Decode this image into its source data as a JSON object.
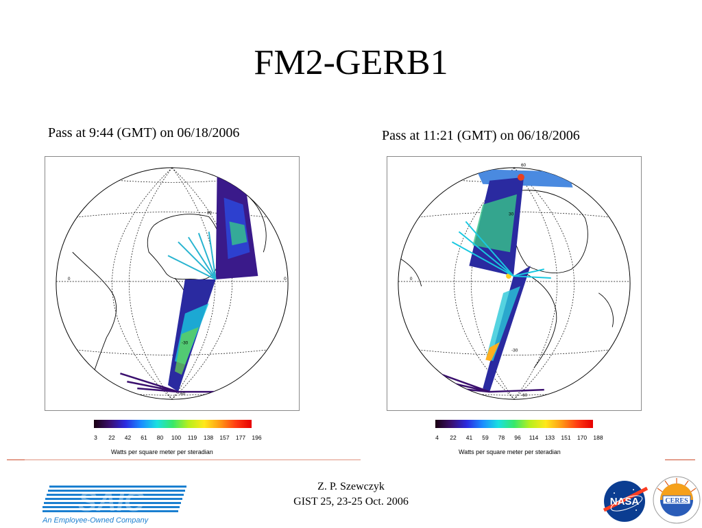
{
  "slide": {
    "title": "FM2-GERB1",
    "colors": {
      "rule": "#cc4a2a",
      "saic_blue": "#1a7fd0",
      "nasa_blue": "#0b3d91",
      "nasa_red": "#fc3d21"
    }
  },
  "panels": [
    {
      "caption": "Pass at 9:44 (GMT) on 06/18/2006",
      "colorbar_ticks": [
        "3",
        "22",
        "42",
        "61",
        "80",
        "100",
        "119",
        "138",
        "157",
        "177",
        "196"
      ],
      "colorbar_label": "Watts per square meter per steradian",
      "globe_labels": [
        "30",
        "0",
        "-30",
        "-60",
        "0"
      ]
    },
    {
      "caption": "Pass at 11:21 (GMT) on 06/18/2006",
      "colorbar_ticks": [
        "4",
        "22",
        "41",
        "59",
        "78",
        "96",
        "114",
        "133",
        "151",
        "170",
        "188"
      ],
      "colorbar_label": "Watts per square meter per steradian",
      "globe_labels": [
        "60",
        "30",
        "0",
        "-30",
        "-60"
      ]
    }
  ],
  "footer": {
    "author": "Z. P. Szewczyk",
    "conference": "GIST 25, 23-25 Oct. 2006"
  },
  "logos": {
    "saic_text": "SAIC",
    "saic_tagline": "An Employee-Owned Company",
    "nasa_text": "NASA",
    "ceres_text": "CERES",
    "ceres_ring_text": "CLOUDS AND THE EARTH'S RADIANT ENERGY SYSTEM"
  }
}
